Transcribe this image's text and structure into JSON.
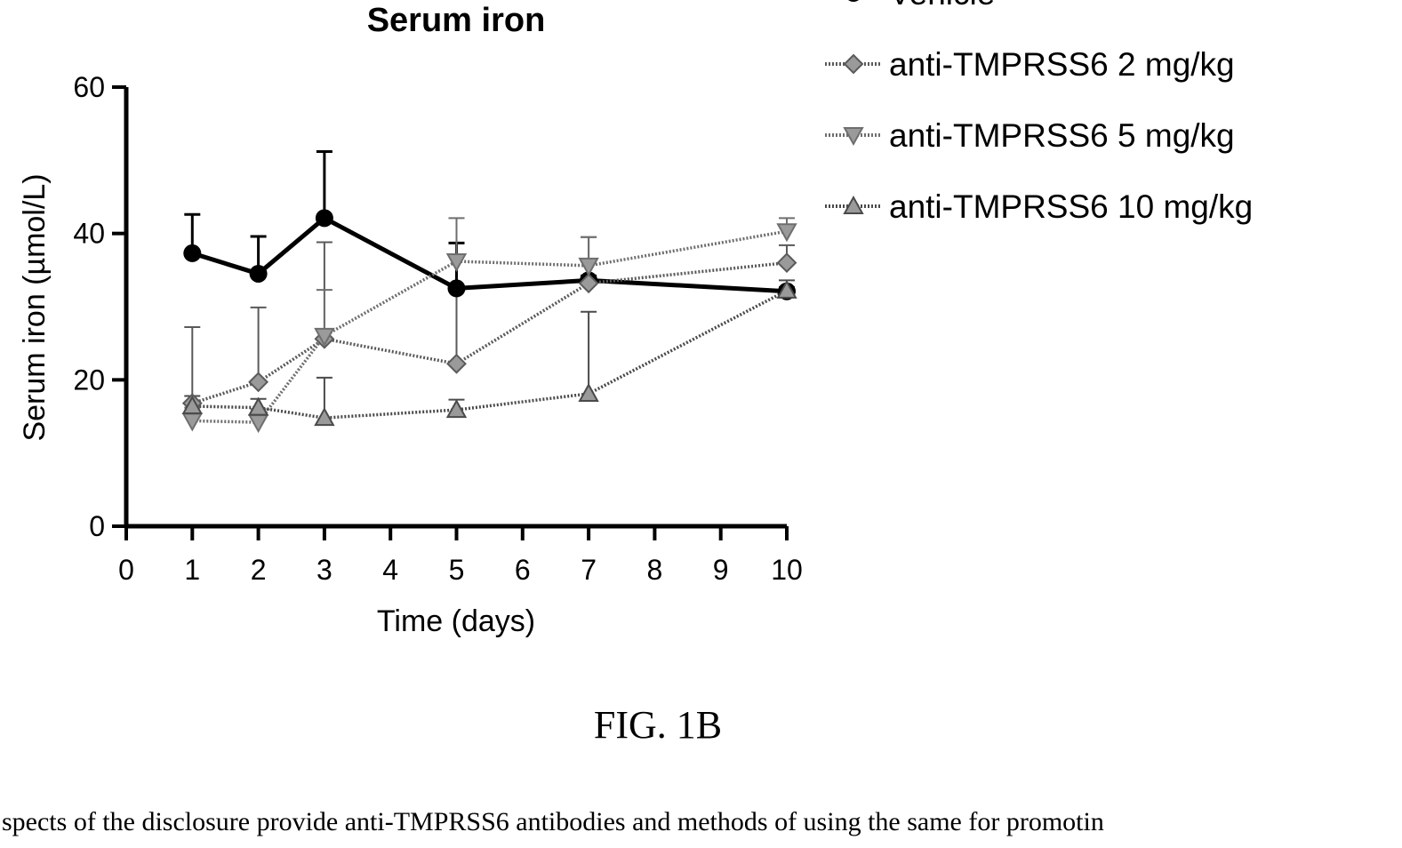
{
  "chart_data": {
    "type": "line",
    "title": "Serum iron",
    "xlabel": "Time (days)",
    "ylabel": "Serum iron (µmol/L)",
    "xlim": [
      0,
      10
    ],
    "ylim": [
      0,
      60
    ],
    "xticks": [
      "0",
      "1",
      "2",
      "3",
      "4",
      "5",
      "6",
      "7",
      "8",
      "9",
      "10"
    ],
    "yticks": [
      "0",
      "20",
      "40",
      "60"
    ],
    "grid": false,
    "legend_position": "right",
    "x": [
      1,
      2,
      3,
      5,
      7,
      10
    ],
    "series": [
      {
        "name": "Vehicle",
        "marker": "circle",
        "color": "#000000",
        "values": [
          37.3,
          34.5,
          42.1,
          32.5,
          33.6,
          32.1
        ],
        "error": [
          5.3,
          5.1,
          9.1,
          6.2,
          0.6,
          0.5
        ]
      },
      {
        "name": "anti-TMPRSS6 2 mg/kg",
        "marker": "diamond",
        "color": "#5a5a5a",
        "values": [
          16.8,
          19.7,
          25.6,
          22.2,
          33.2,
          36.0
        ],
        "error": [
          10.4,
          10.2,
          13.2,
          10.6,
          6.3,
          2.4
        ]
      },
      {
        "name": "anti-TMPRSS6 5 mg/kg",
        "marker": "triangle-down",
        "color": "#6e6e6e",
        "values": [
          14.4,
          14.2,
          26.0,
          36.2,
          35.6,
          40.3
        ],
        "error": [
          1.8,
          1.8,
          6.3,
          5.9,
          3.9,
          1.8
        ]
      },
      {
        "name": "anti-TMPRSS6 10 mg/kg",
        "marker": "triangle-up",
        "color": "#4a4a4a",
        "values": [
          16.4,
          16.2,
          14.8,
          15.9,
          18.1,
          32.2
        ],
        "error": [
          1.4,
          1.2,
          5.5,
          1.4,
          11.2,
          1.4
        ]
      }
    ]
  },
  "figure_caption": "FIG. 1B",
  "body_text": "spects of the disclosure provide anti-TMPRSS6 antibodies and methods of using the same for promotin"
}
